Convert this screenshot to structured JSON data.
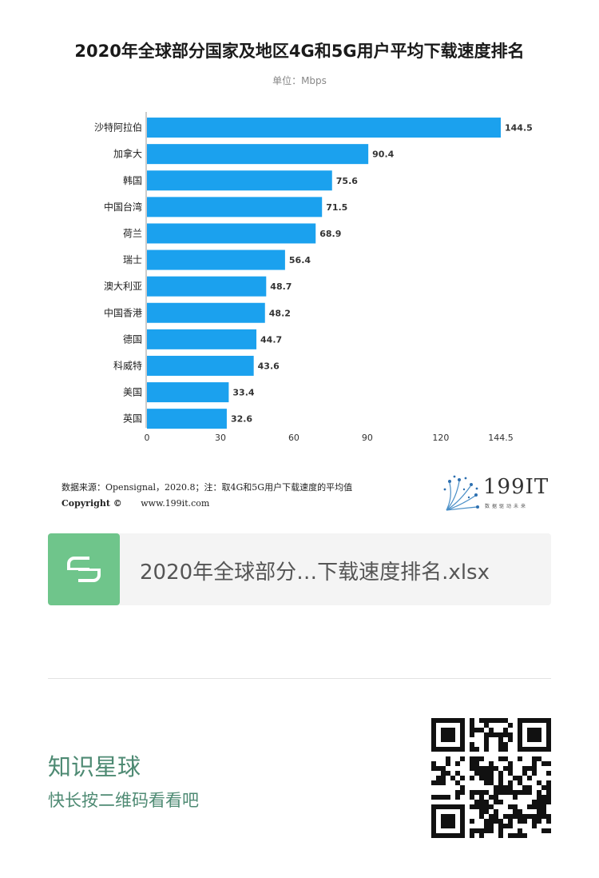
{
  "title": "2020年全球部分国家及地区4G和5G用户平均下载速度排名",
  "unit": "单位：Mbps",
  "chart_data": {
    "type": "bar",
    "orientation": "horizontal",
    "categories": [
      "沙特阿拉伯",
      "加拿大",
      "韩国",
      "中国台湾",
      "荷兰",
      "瑞士",
      "澳大利亚",
      "中国香港",
      "德国",
      "科威特",
      "美国",
      "英国"
    ],
    "values": [
      144.5,
      90.4,
      75.6,
      71.5,
      68.9,
      56.4,
      48.7,
      48.2,
      44.7,
      43.6,
      33.4,
      32.6
    ],
    "value_labels": [
      "144.5",
      "90.4",
      "75.6",
      "71.5",
      "68.9",
      "56.4",
      "48.7",
      "48.2",
      "44.7",
      "43.6",
      "33.4",
      "32.6"
    ],
    "x_ticks": [
      0,
      30,
      60,
      90,
      120,
      144.5
    ],
    "x_tick_labels": [
      "0",
      "30",
      "60",
      "90",
      "120",
      "144.5"
    ],
    "xlim": [
      0,
      144.5
    ],
    "bar_color": "#1ba1ee",
    "grid": false,
    "legend": "none"
  },
  "footer": {
    "source": "数据来源：Opensignal，2020.8；注：取4G和5G用户下载速度的平均值",
    "copyright_label": "Copyright ©",
    "website": "www.199it.com",
    "logo_text": "199IT",
    "logo_sub": "数据驱动未来"
  },
  "file_card": {
    "icon": "spreadsheet-s-icon",
    "icon_color": "#6fc58b",
    "file_name": "2020年全球部分…下载速度排名.xlsx"
  },
  "promo": {
    "title": "知识星球",
    "subtitle": "快长按二维码看看吧",
    "qr_icon": "qr-code-icon",
    "text_color": "#4e8a73"
  }
}
